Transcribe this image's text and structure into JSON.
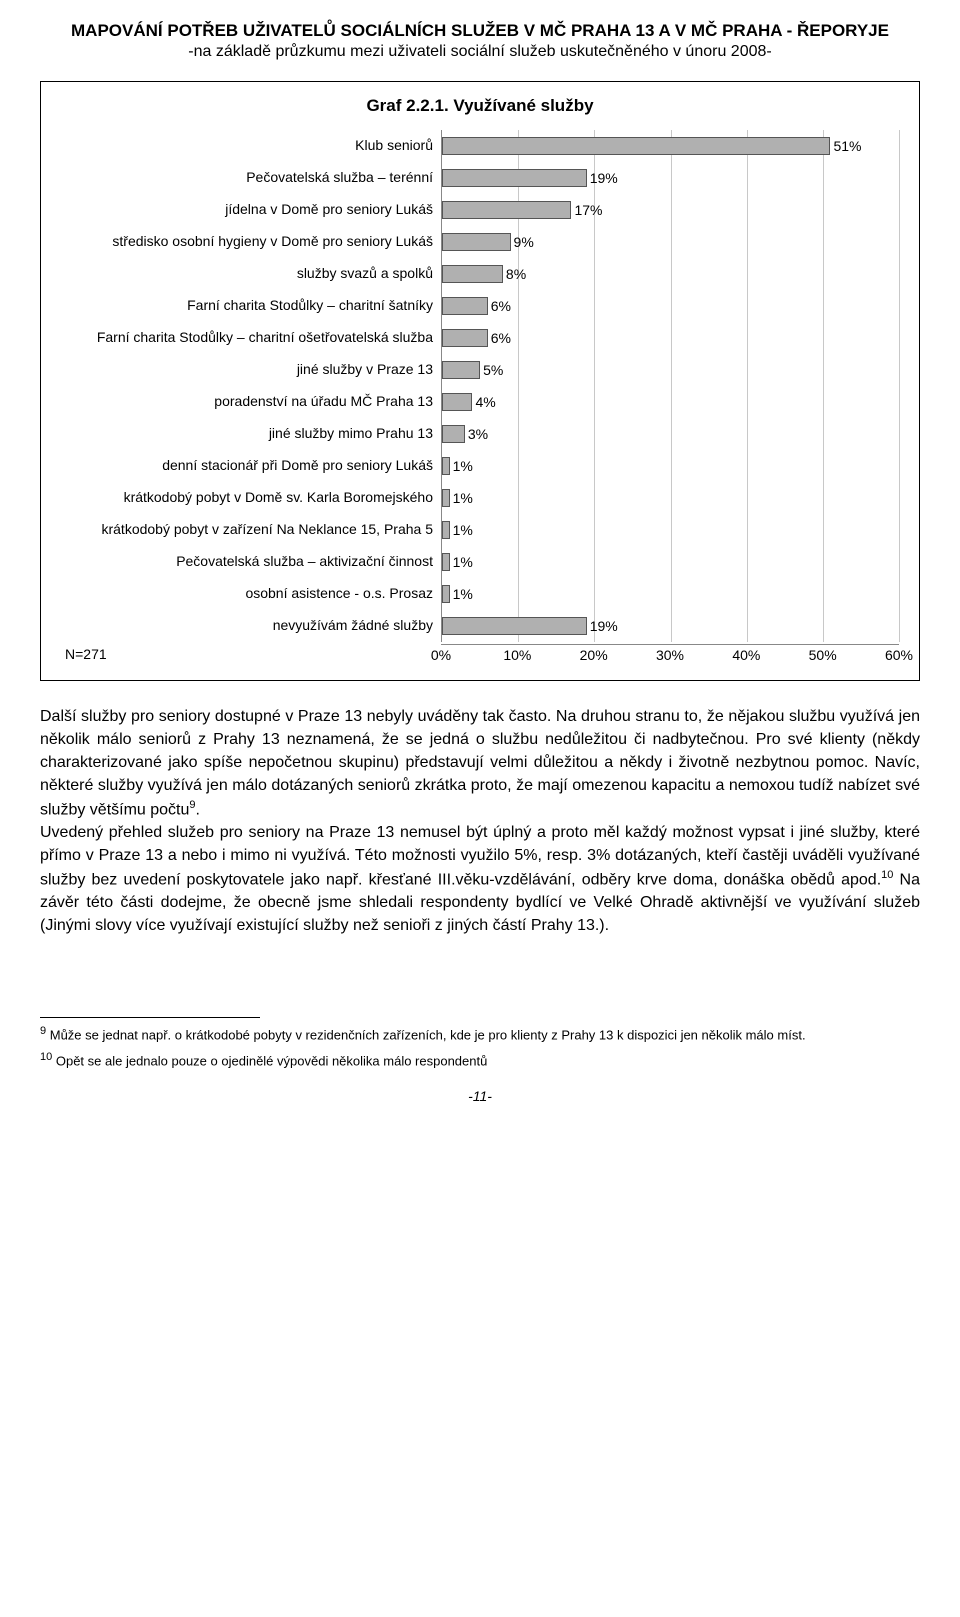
{
  "header": {
    "title": "MAPOVÁNÍ POTŘEB UŽIVATELŮ SOCIÁLNÍCH SLUŽEB V MČ PRAHA 13 A V MČ PRAHA - ŘEPORYJE",
    "subtitle": "-na základě průzkumu mezi uživateli sociální služeb uskutečněného v únoru 2008-"
  },
  "chart": {
    "type": "bar-horizontal",
    "title": "Graf 2.2.1. Využívané služby",
    "n_label": "N=271",
    "xlim": [
      0,
      60
    ],
    "x_ticks": [
      "0%",
      "10%",
      "20%",
      "30%",
      "40%",
      "50%",
      "60%"
    ],
    "bar_color": "#b0b0b0",
    "bar_border": "#555555",
    "grid_color": "#c8c8c8",
    "label_fontsize": 14,
    "value_fontsize": 14,
    "items": [
      {
        "label": "Klub seniorů",
        "value": 51,
        "value_label": "51%"
      },
      {
        "label": "Pečovatelská služba – terénní",
        "value": 19,
        "value_label": "19%"
      },
      {
        "label": "jídelna v Domě pro seniory Lukáš",
        "value": 17,
        "value_label": "17%"
      },
      {
        "label": "středisko osobní hygieny v Domě pro seniory Lukáš",
        "value": 9,
        "value_label": "9%"
      },
      {
        "label": "služby svazů a spolků",
        "value": 8,
        "value_label": "8%"
      },
      {
        "label": "Farní charita Stodůlky – charitní šatníky",
        "value": 6,
        "value_label": "6%"
      },
      {
        "label": "Farní charita Stodůlky – charitní ošetřovatelská služba",
        "value": 6,
        "value_label": "6%"
      },
      {
        "label": "jiné služby v Praze 13",
        "value": 5,
        "value_label": "5%"
      },
      {
        "label": "poradenství na úřadu MČ Praha 13",
        "value": 4,
        "value_label": "4%"
      },
      {
        "label": "jiné služby mimo Prahu 13",
        "value": 3,
        "value_label": "3%"
      },
      {
        "label": "denní stacionář při Domě pro seniory Lukáš",
        "value": 1,
        "value_label": "1%"
      },
      {
        "label": "krátkodobý pobyt v Domě sv. Karla Boromejského",
        "value": 1,
        "value_label": "1%"
      },
      {
        "label": "krátkodobý pobyt v zařízení Na Neklance 15, Praha 5",
        "value": 1,
        "value_label": "1%"
      },
      {
        "label": "Pečovatelská služba – aktivizační činnost",
        "value": 1,
        "value_label": "1%"
      },
      {
        "label": "osobní asistence - o.s. Prosaz",
        "value": 1,
        "value_label": "1%"
      },
      {
        "label": "nevyužívám žádné služby",
        "value": 19,
        "value_label": "19%"
      }
    ]
  },
  "body": {
    "p1_a": "Další služby pro seniory dostupné v Praze 13 nebyly uváděny tak často. Na druhou stranu to, že nějakou službu využívá jen několik málo seniorů z Prahy 13 neznamená, že se jedná o službu nedůležitou či nadbytečnou. Pro své klienty (někdy charakterizované jako spíše nepočetnou skupinu) představují velmi důležitou a někdy i životně nezbytnou pomoc. Navíc, některé služby využívá jen málo dotázaných seniorů zkrátka proto, že  mají omezenou kapacitu a nemохou tudíž nabízet své služby většímu počtu",
    "p1_sup": "9",
    "p1_b": ".",
    "p2_a": "Uvedený přehled služeb pro seniory na Praze 13 nemusel být úplný a proto měl každý možnost vypsat i jiné služby, které přímo v Praze 13 a nebo i mimo ni využívá. Této možnosti využilo 5%, resp. 3% dotázaných, kteří častěji uváděli využívané služby bez uvedení poskytovatele jako např. křesťané III.věku-vzdělávání, odběry krve doma, donáška obědů apod.",
    "p2_sup": "10",
    "p2_b": " Na závěr této části dodejme, že obecně jsme shledali respondenty bydlící ve Velké Ohradě aktivnější ve využívání služeb (Jinými slovy více využívají existující služby než senioři z jiných částí Prahy 13.)."
  },
  "footnotes": {
    "f9_sup": "9",
    "f9": " Může se jednat např. o krátkodobé pobyty v rezidenčních zařízeních, kde je pro klienty z Prahy 13 k dispozici jen několik málo míst.",
    "f10_sup": "10",
    "f10": " Opět se ale jednalo pouze o ojedinělé výpovědi několika málo respondentů"
  },
  "page_number": "-11-"
}
